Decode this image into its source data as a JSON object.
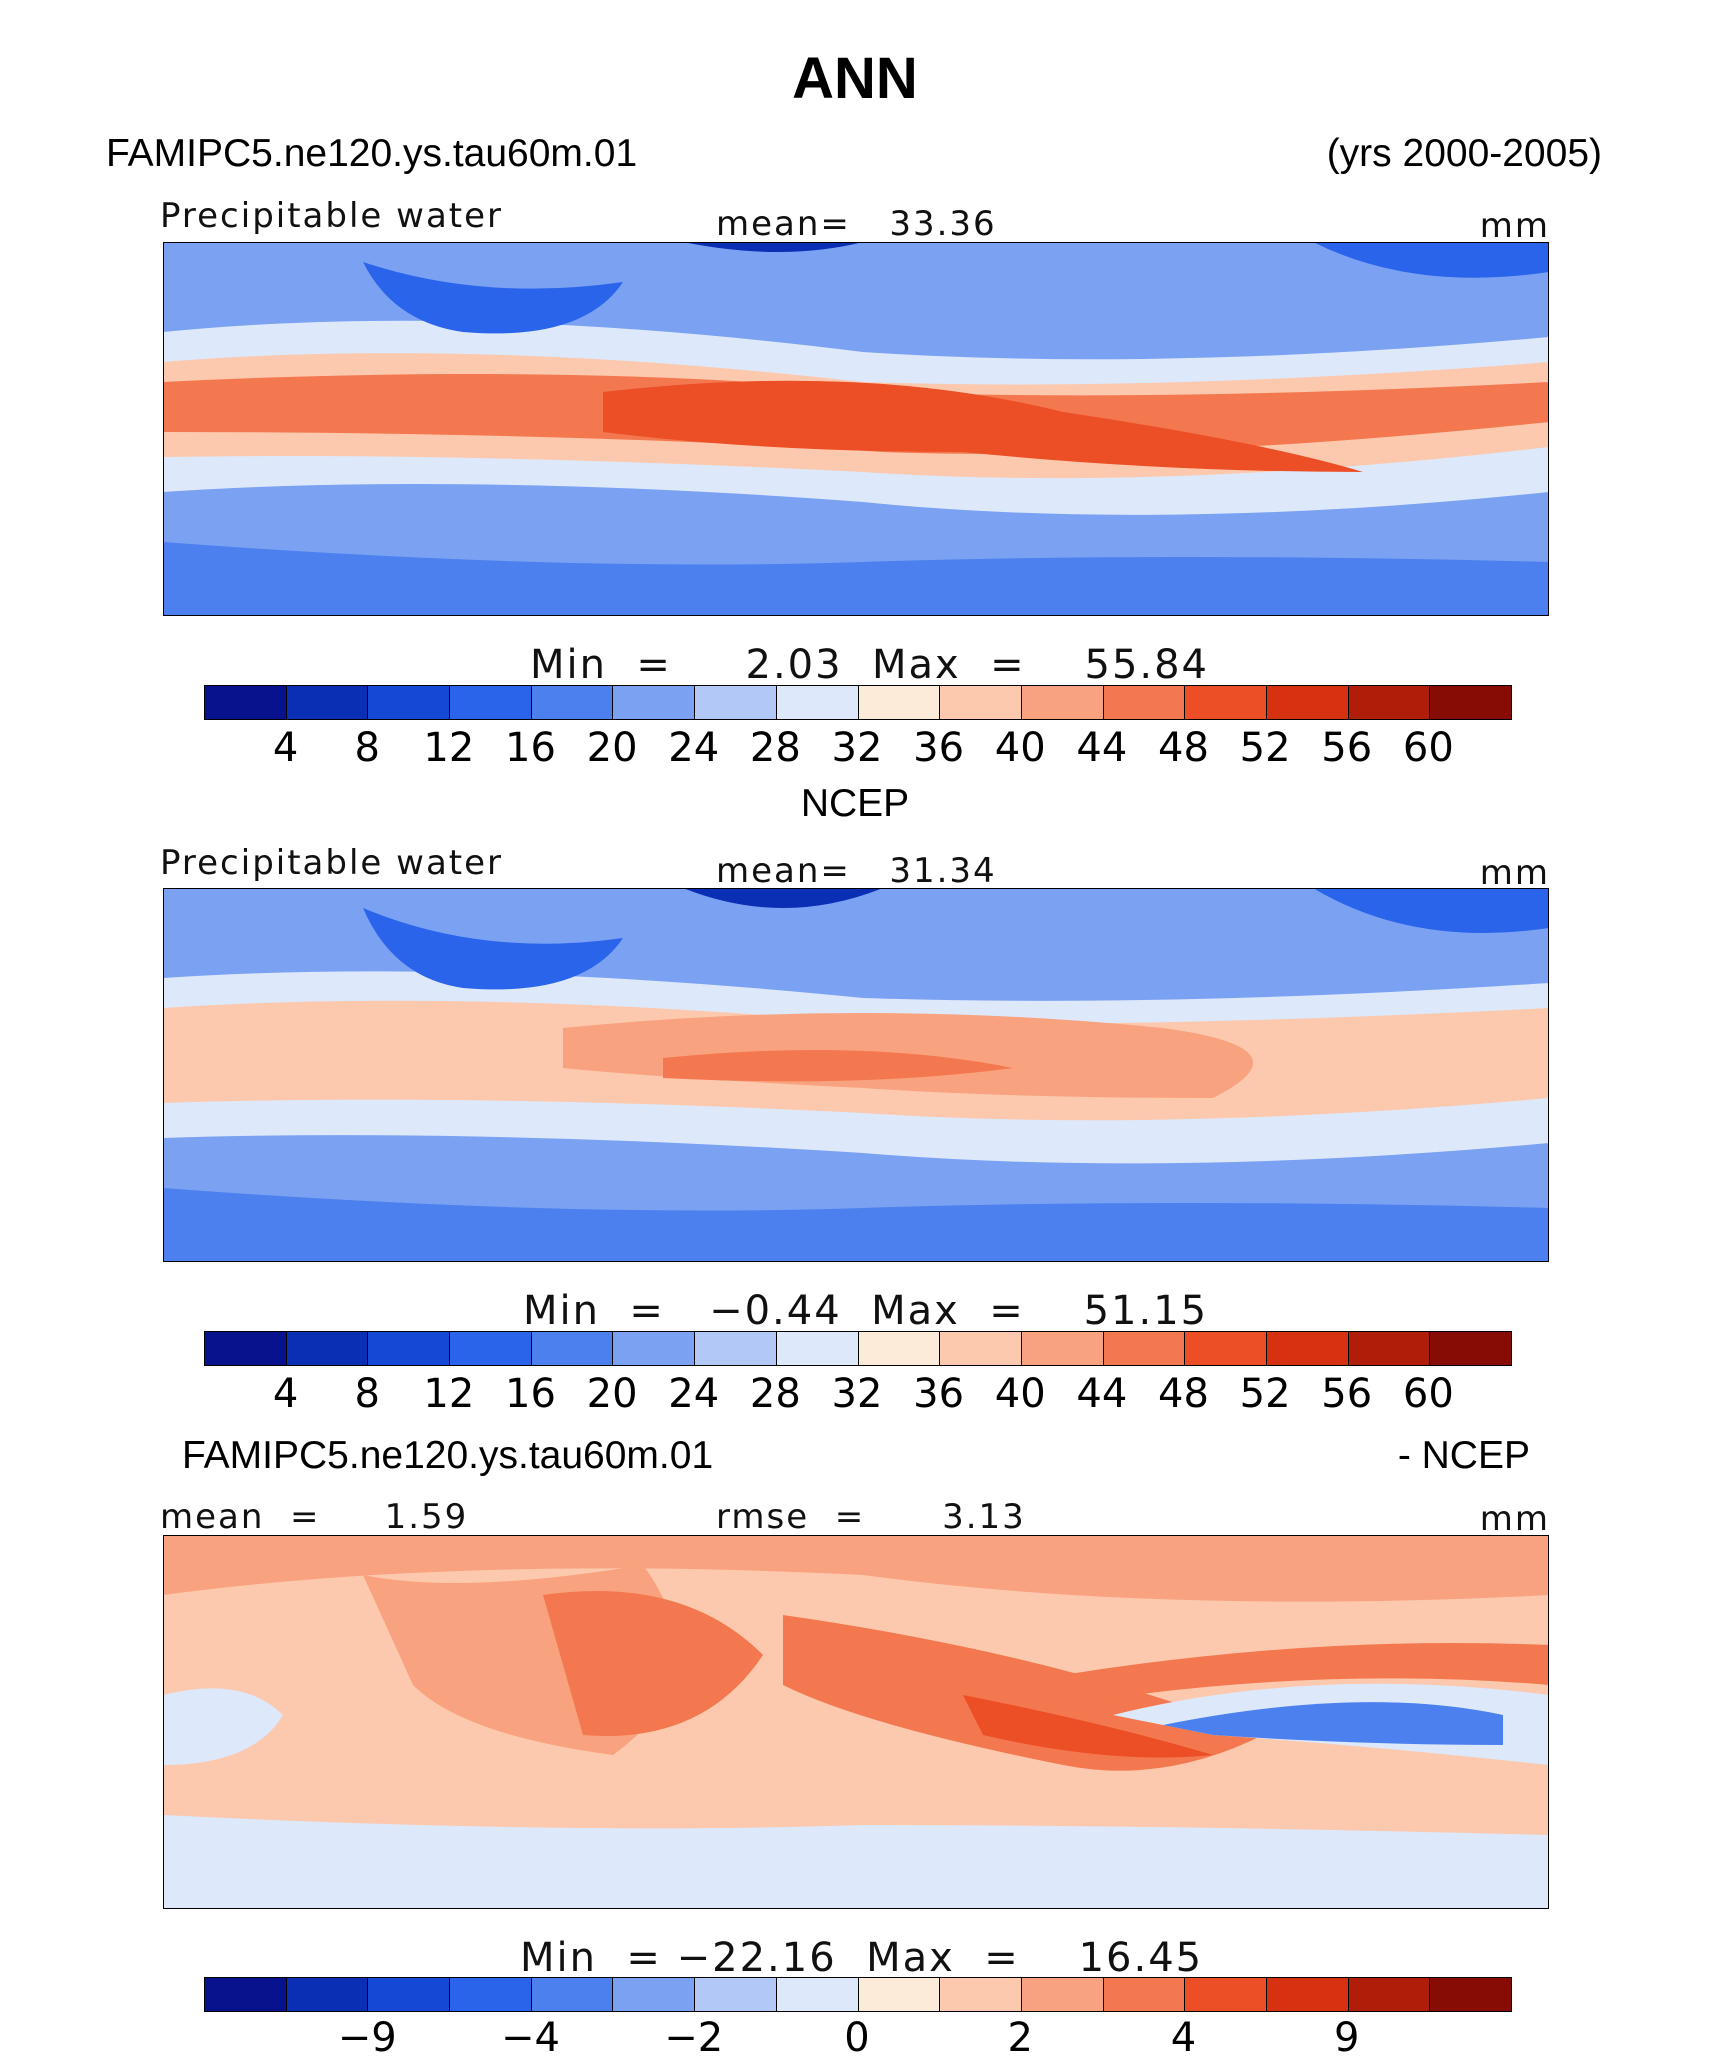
{
  "chart_data": [
    {
      "type": "heatmap",
      "title": "ANN",
      "case_name": "FAMIPC5.ne120.ys.tau60m.01",
      "years": "(yrs 2000-2005)",
      "variable": "Precipitable water",
      "mean_text": "mean=   33.36",
      "units": "mm",
      "min_max_text": "Min  =     2.03  Max  =    55.84",
      "color_levels": [
        4,
        8,
        12,
        16,
        20,
        24,
        28,
        32,
        36,
        40,
        44,
        48,
        52,
        56,
        60
      ],
      "tick_labels": [
        "4",
        "8",
        "12",
        "16",
        "20",
        "24",
        "28",
        "32",
        "36",
        "40",
        "44",
        "48",
        "52",
        "56",
        "60"
      ]
    },
    {
      "type": "heatmap",
      "title": "NCEP",
      "variable": "Precipitable water",
      "mean_text": "mean=   31.34",
      "units": "mm",
      "min_max_text": "Min  =   −0.44  Max  =    51.15",
      "color_levels": [
        4,
        8,
        12,
        16,
        20,
        24,
        28,
        32,
        36,
        40,
        44,
        48,
        52,
        56,
        60
      ],
      "tick_labels": [
        "4",
        "8",
        "12",
        "16",
        "20",
        "24",
        "28",
        "32",
        "36",
        "40",
        "44",
        "48",
        "52",
        "56",
        "60"
      ]
    },
    {
      "type": "heatmap",
      "title_left": "FAMIPC5.ne120.ys.tau60m.01",
      "title_right": "- NCEP",
      "mean_text": "mean  =     1.59",
      "rmse_text": "rmse  =      3.13",
      "units": "mm",
      "min_max_text": "Min  = −22.16  Max  =    16.45",
      "tick_labels": [
        "−9",
        "−4",
        "−2",
        "0",
        "2",
        "4",
        "9"
      ]
    }
  ],
  "palette": [
    "#08128c",
    "#0a2fb4",
    "#1648d6",
    "#2a64ea",
    "#4c80ee",
    "#7ba1f2",
    "#b2c9f7",
    "#dde8fb",
    "#fdebd9",
    "#fcc9ae",
    "#f9a27f",
    "#f4784f",
    "#ec4e26",
    "#d63211",
    "#b01e0a",
    "#870c06"
  ]
}
